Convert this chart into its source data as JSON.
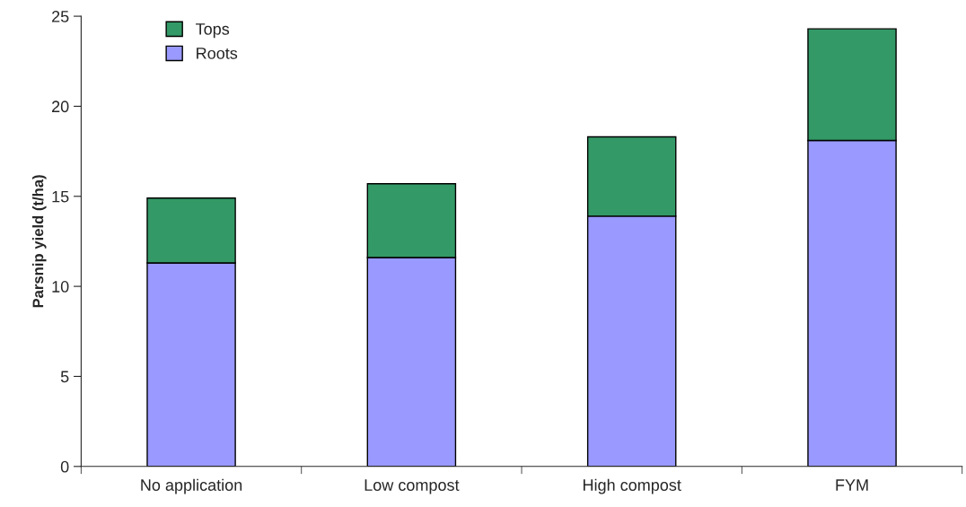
{
  "chart_data": {
    "type": "bar",
    "stacked": true,
    "ylabel": "Parsnip yield (t/ha)",
    "categories": [
      "No application",
      "Low compost",
      "High compost",
      "FYM"
    ],
    "series": [
      {
        "name": "Roots",
        "color": "#9999ff",
        "values": [
          11.3,
          11.6,
          13.9,
          18.1
        ]
      },
      {
        "name": "Tops",
        "color": "#339966",
        "values": [
          3.6,
          4.1,
          4.4,
          6.2
        ]
      }
    ],
    "ylim": [
      0,
      25
    ],
    "yticks": [
      0,
      5,
      10,
      15,
      20,
      25
    ],
    "grid": false,
    "legend": "top left"
  }
}
